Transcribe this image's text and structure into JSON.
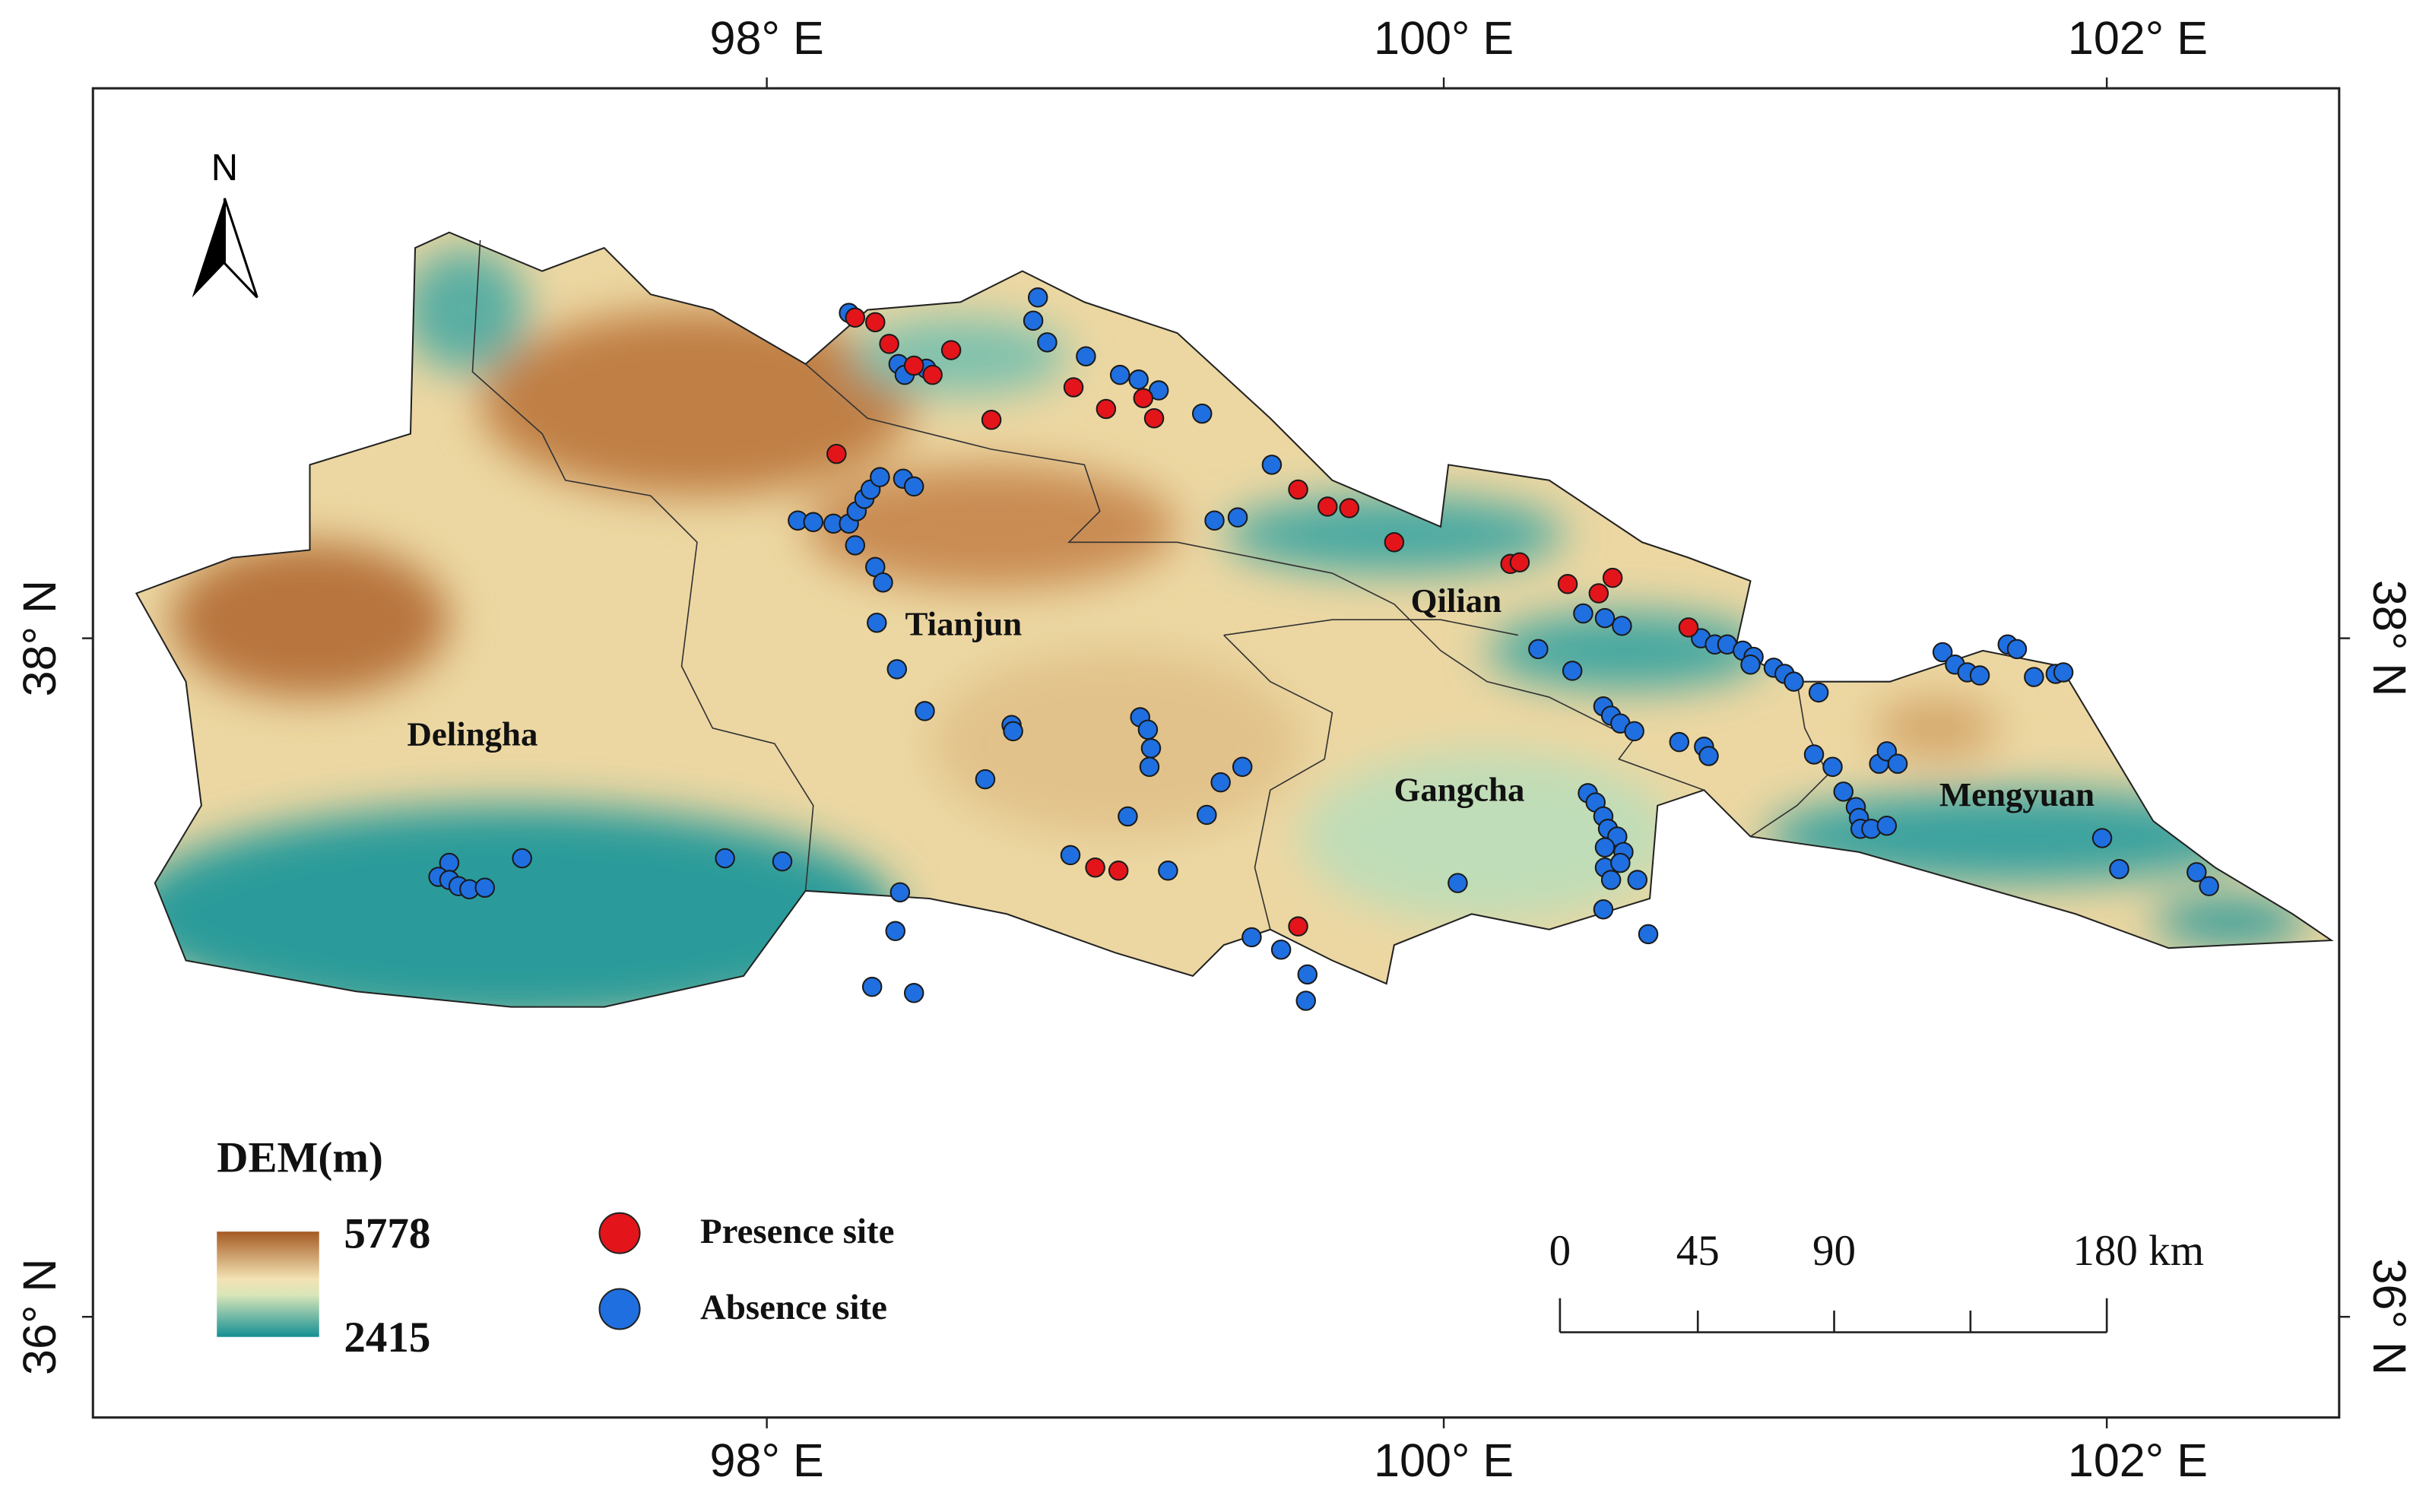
{
  "axes": {
    "top": [
      "98° E",
      "100° E",
      "102° E"
    ],
    "bottom": [
      "98° E",
      "100° E",
      "102° E"
    ],
    "left": [
      "38° N",
      "36° N"
    ],
    "right": [
      "38° N",
      "36° N"
    ]
  },
  "north_arrow": "N",
  "regions": [
    "Delingha",
    "Tianjun",
    "Qilian",
    "Gangcha",
    "Mengyuan"
  ],
  "legend": {
    "title": "DEM(m)",
    "max": 5778,
    "min": 2415,
    "presence": "Presence site",
    "absence": "Absence site"
  },
  "scale_bar": {
    "labels": [
      0,
      45,
      90,
      "180 km"
    ]
  }
}
